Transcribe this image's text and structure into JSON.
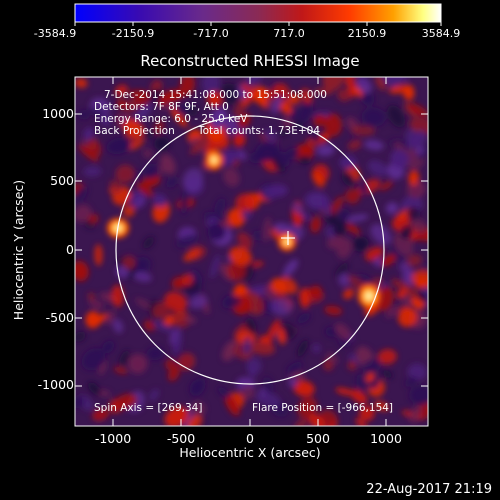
{
  "colorbar": {
    "ticks": [
      "-3584.9",
      "-2150.9",
      "-717.0",
      "717.0",
      "2150.9",
      "3584.9"
    ],
    "colors": [
      "#0000ff",
      "#4b0082",
      "#7a3a9c",
      "#a82a6a",
      "#d01515",
      "#ff5500",
      "#ff9900",
      "#ffff80",
      "#ffffff"
    ]
  },
  "title": "Reconstructed RHESSI Image",
  "info": {
    "time": "7-Dec-2014 15:41:08.000 to 15:51:08.000",
    "detectors": "Detectors: 7F 8F 9F, Att 0",
    "energy": "Energy Range: 6.0 - 25.0 keV",
    "method": "Back Projection",
    "counts": "Total counts: 1.73E+04"
  },
  "footer": {
    "spin_axis": "Spin Axis = [269,34]",
    "flare_position": "Flare Position = [-966,154]"
  },
  "axes": {
    "xlabel": "Heliocentric X (arcsec)",
    "ylabel": "Heliocentric Y (arcsec)",
    "xticks": [
      "-1000",
      "-500",
      "0",
      "500",
      "1000"
    ],
    "yticks": [
      "1000",
      "500",
      "0",
      "-500",
      "-1000"
    ]
  },
  "timestamp": "22-Aug-2017 21:19"
}
